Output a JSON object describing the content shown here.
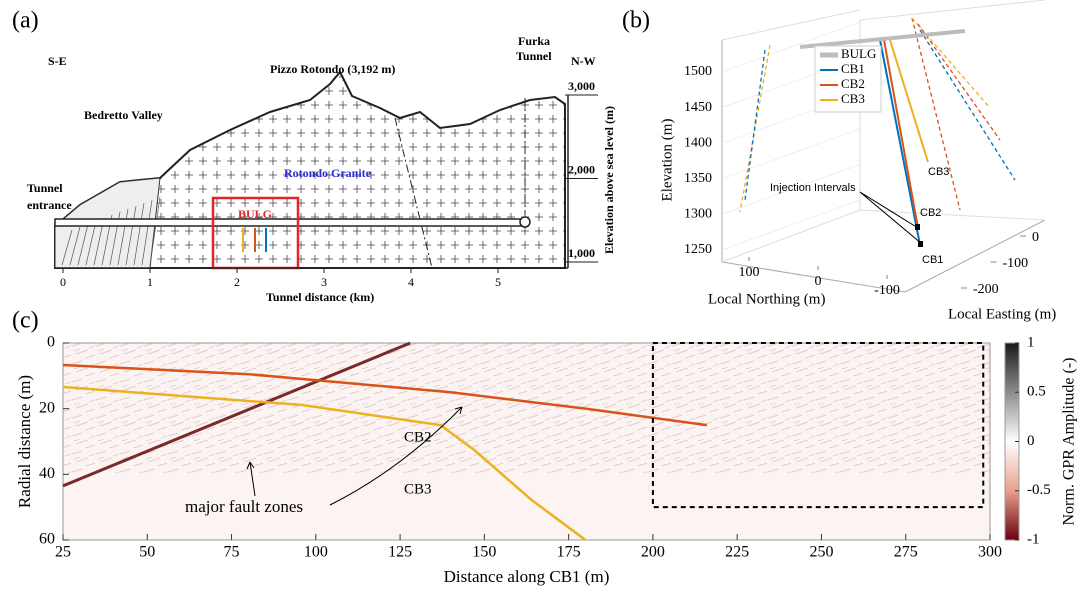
{
  "panels": {
    "a": {
      "label": "(a)",
      "left_direction": "S-E",
      "right_direction": "N-W",
      "peak": "Pizzo Rotondo (3,192 m)",
      "furka": [
        "Furka",
        "Tunnel"
      ],
      "valley": "Bedretto Valley",
      "granite": "Rotondo Granite",
      "entrance": [
        "Tunnel",
        "entrance"
      ],
      "lab": "BULG",
      "xlabel": "Tunnel distance (km)",
      "ylabel": "Elevation above sea level (m)",
      "xticks": [
        0,
        1,
        2,
        3,
        4,
        5
      ],
      "yticks": [
        {
          "value": 1000,
          "label": "1,000"
        },
        {
          "value": 2000,
          "label": "2,000"
        },
        {
          "value": 3000,
          "label": "3,000"
        }
      ]
    },
    "b": {
      "label": "(b)",
      "ylabel": "Elevation (m)",
      "northing_label": "Local Northing (m)",
      "easting_label": "Local Easting (m)",
      "yticks": [
        1250,
        1300,
        1350,
        1400,
        1450,
        1500
      ],
      "northing_ticks": [
        100,
        0,
        -100
      ],
      "easting_ticks": [
        0,
        -100,
        -200
      ],
      "legend": [
        {
          "name": "BULG",
          "color": "#bdbdbd"
        },
        {
          "name": "CB1",
          "color": "#0072bd"
        },
        {
          "name": "CB2",
          "color": "#d95319"
        },
        {
          "name": "CB3",
          "color": "#edb120"
        }
      ],
      "annotations": {
        "cb3": "CB3",
        "cb2": "CB2",
        "cb1": "CB1",
        "intervals": "Injection Intervals"
      }
    },
    "c": {
      "label": "(c)",
      "xlabel": "Distance along CB1 (m)",
      "ylabel": "Radial distance (m)",
      "xlim": [
        25,
        300
      ],
      "ylim": [
        0,
        60
      ],
      "xticks": [
        25,
        50,
        75,
        100,
        125,
        150,
        175,
        200,
        225,
        250,
        275,
        300
      ],
      "yticks": [
        0,
        20,
        40,
        60
      ],
      "colorbar_label": "Norm. GPR Amplitude (-)",
      "colorbar_lim": [
        -1,
        1
      ],
      "colorbar_ticks": [
        1,
        0.5,
        0,
        -0.5,
        -1
      ],
      "cb2": {
        "name": "CB2",
        "color": "#d95319",
        "x": [
          25,
          80,
          140,
          180,
          216
        ],
        "y": [
          6.7,
          9.5,
          15,
          20,
          25
        ]
      },
      "cb3": {
        "name": "CB3",
        "color": "#edb120",
        "x": [
          25,
          96,
          137,
          147,
          164,
          180
        ],
        "y": [
          13.4,
          18.9,
          25,
          32.6,
          47.8,
          60
        ]
      },
      "fault": {
        "x": [
          25,
          128
        ],
        "y": [
          43.5,
          0
        ]
      },
      "fault_label": "major fault zones",
      "box": {
        "x": [
          200,
          298
        ],
        "y": [
          0,
          50
        ]
      }
    }
  }
}
